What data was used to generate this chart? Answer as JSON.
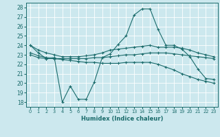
{
  "xlabel": "Humidex (Indice chaleur)",
  "bg_color": "#cce8ee",
  "grid_color": "#aad0d8",
  "line_color": "#1a6b6b",
  "xlim": [
    -0.5,
    23.5
  ],
  "ylim": [
    17.5,
    28.5
  ],
  "yticks": [
    18,
    19,
    20,
    21,
    22,
    23,
    24,
    25,
    26,
    27,
    28
  ],
  "xticks": [
    0,
    1,
    2,
    3,
    4,
    5,
    6,
    7,
    8,
    9,
    10,
    11,
    12,
    13,
    14,
    15,
    16,
    17,
    18,
    19,
    20,
    21,
    22,
    23
  ],
  "lines": [
    {
      "x": [
        0,
        1,
        2,
        3,
        4,
        5,
        6,
        7,
        8,
        9,
        10,
        11,
        12,
        13,
        14,
        15,
        16,
        17,
        18,
        19,
        20,
        21,
        22,
        23
      ],
      "y": [
        24.0,
        23.2,
        22.6,
        22.7,
        18.0,
        19.7,
        18.3,
        18.3,
        20.1,
        22.7,
        23.1,
        24.1,
        25.0,
        27.2,
        27.85,
        27.85,
        25.7,
        24.0,
        24.0,
        23.6,
        22.8,
        21.5,
        20.5,
        20.4
      ]
    },
    {
      "x": [
        0,
        1,
        2,
        3,
        4,
        5,
        6,
        7,
        8,
        9,
        10,
        11,
        12,
        13,
        14,
        15,
        16,
        17,
        18,
        19,
        20,
        21,
        22,
        23
      ],
      "y": [
        24.0,
        23.5,
        23.2,
        23.0,
        22.8,
        22.8,
        22.8,
        22.9,
        23.0,
        23.2,
        23.5,
        23.6,
        23.7,
        23.8,
        23.9,
        24.0,
        23.8,
        23.8,
        23.8,
        23.7,
        23.5,
        23.2,
        23.0,
        22.8
      ]
    },
    {
      "x": [
        0,
        1,
        2,
        3,
        4,
        5,
        6,
        7,
        8,
        9,
        10,
        11,
        12,
        13,
        14,
        15,
        16,
        17,
        18,
        19,
        20,
        21,
        22,
        23
      ],
      "y": [
        23.0,
        22.7,
        22.6,
        22.6,
        22.6,
        22.6,
        22.6,
        22.6,
        22.7,
        22.7,
        22.8,
        22.9,
        23.0,
        23.0,
        23.1,
        23.2,
        23.2,
        23.2,
        23.1,
        23.0,
        22.9,
        22.8,
        22.7,
        22.6
      ]
    },
    {
      "x": [
        0,
        1,
        2,
        3,
        4,
        5,
        6,
        7,
        8,
        9,
        10,
        11,
        12,
        13,
        14,
        15,
        16,
        17,
        18,
        19,
        20,
        21,
        22,
        23
      ],
      "y": [
        23.2,
        22.9,
        22.7,
        22.6,
        22.5,
        22.4,
        22.3,
        22.2,
        22.2,
        22.1,
        22.1,
        22.1,
        22.2,
        22.2,
        22.2,
        22.2,
        22.0,
        21.7,
        21.4,
        21.0,
        20.7,
        20.4,
        20.2,
        20.0
      ]
    }
  ]
}
